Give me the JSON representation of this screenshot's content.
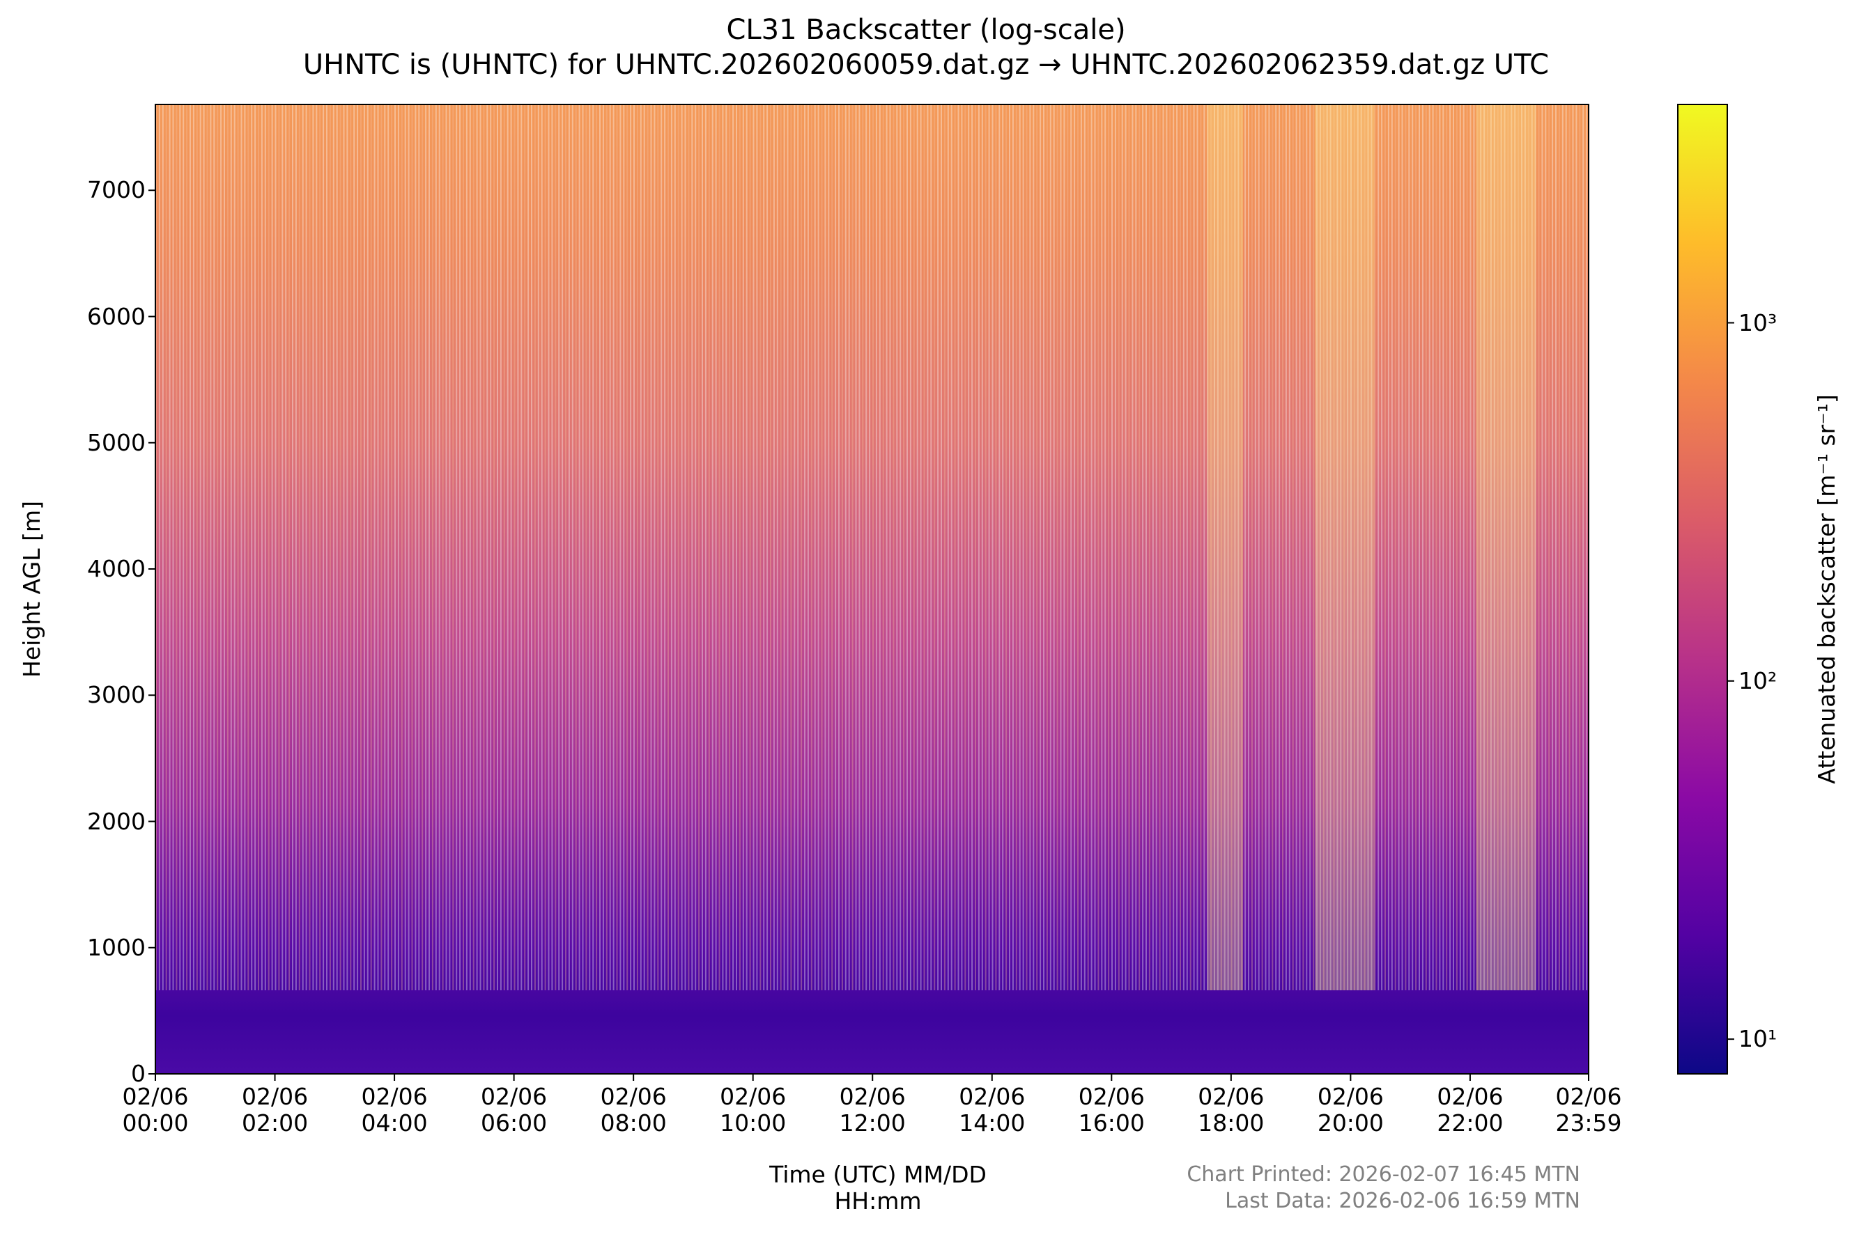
{
  "chart_data": {
    "type": "heatmap",
    "title": "CL31 Backscatter (log-scale)",
    "subtitle": "UHNTC is (UHNTC) for UHNTC.202602060059.dat.gz → UHNTC.202602062359.dat.gz UTC",
    "x_label": "Time (UTC) MM/DD\nHH:mm",
    "y_label": "Height AGL [m]",
    "xlim": [
      0,
      23.983
    ],
    "xticks": [
      {
        "value": 0,
        "label": "02/06\n00:00"
      },
      {
        "value": 2,
        "label": "02/06\n02:00"
      },
      {
        "value": 4,
        "label": "02/06\n04:00"
      },
      {
        "value": 6,
        "label": "02/06\n06:00"
      },
      {
        "value": 8,
        "label": "02/06\n08:00"
      },
      {
        "value": 10,
        "label": "02/06\n10:00"
      },
      {
        "value": 12,
        "label": "02/06\n12:00"
      },
      {
        "value": 14,
        "label": "02/06\n14:00"
      },
      {
        "value": 16,
        "label": "02/06\n16:00"
      },
      {
        "value": 18,
        "label": "02/06\n18:00"
      },
      {
        "value": 20,
        "label": "02/06\n20:00"
      },
      {
        "value": 22,
        "label": "02/06\n22:00"
      },
      {
        "value": 23.983,
        "label": "02/06\n23:59"
      }
    ],
    "ylim": [
      0,
      7680
    ],
    "yticks": [
      0,
      1000,
      2000,
      3000,
      4000,
      5000,
      6000,
      7000
    ],
    "colormap": "plasma",
    "colorbar": {
      "label": "Attenuated backscatter [m⁻¹ sr⁻¹]",
      "log_scale": true,
      "clim": [
        8,
        4070
      ],
      "ticks": [
        {
          "value": 10,
          "label": "10¹"
        },
        {
          "value": 100,
          "label": "10²"
        },
        {
          "value": 1000,
          "label": "10³"
        }
      ]
    },
    "footer": [
      "Chart Printed: 2026-02-07 16:45 MTN",
      "Last Data: 2026-02-06 16:59 MTN"
    ]
  }
}
